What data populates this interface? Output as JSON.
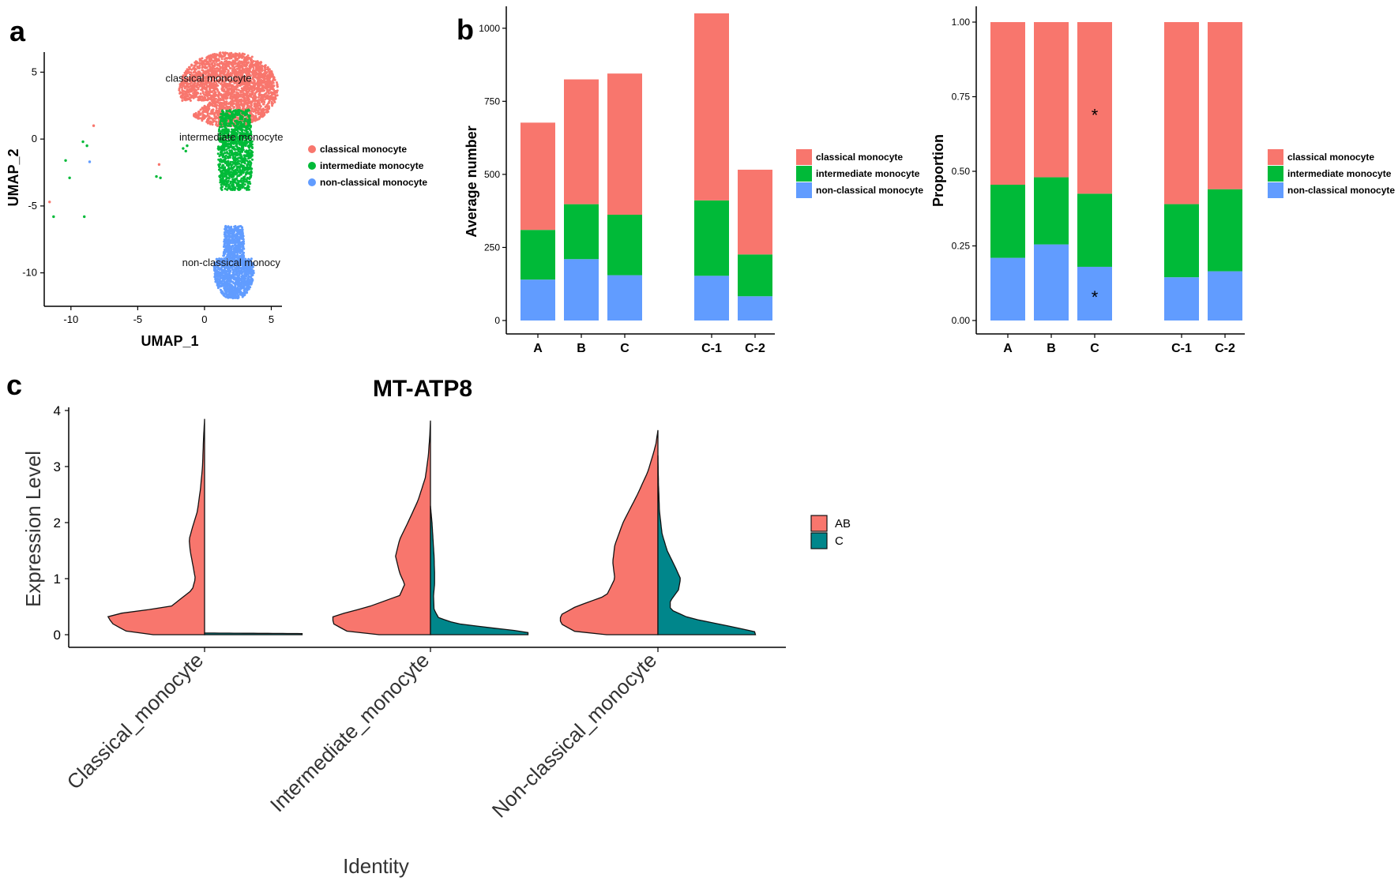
{
  "panel_labels": {
    "a": "a",
    "b": "b",
    "c": "c"
  },
  "colors": {
    "classical": "#F8766D",
    "intermediate": "#00BA38",
    "nonclassical": "#619CFF",
    "AB": "#F8766D",
    "C": "#00868B"
  },
  "chart_data": [
    {
      "id": "umap",
      "type": "scatter",
      "title": "",
      "xlabel": "UMAP_1",
      "ylabel": "UMAP_2",
      "xlim": [
        -12,
        5.8
      ],
      "ylim": [
        -12.5,
        6.5
      ],
      "xticks": [
        -10,
        -5,
        0,
        5
      ],
      "yticks": [
        5,
        0,
        -5,
        -10
      ],
      "cluster_labels": [
        {
          "text": "classical monocyte",
          "x": 0.3,
          "y": 4.3
        },
        {
          "text": "intermediate monocyte",
          "x": 2.0,
          "y": -0.1
        },
        {
          "text": "non-classical monocy",
          "x": 2.0,
          "y": -9.5
        }
      ],
      "clusters": [
        {
          "name": "classical monocyte",
          "color_key": "classical",
          "shape": "upper",
          "cx": 1.8,
          "cy": 3.7,
          "rx": 3.7,
          "ry": 2.8,
          "n": 2600
        },
        {
          "name": "intermediate monocyte",
          "color_key": "intermediate",
          "shape": "middle",
          "cx": 2.3,
          "cy": -0.8,
          "rx": 1.3,
          "ry": 3.0,
          "n": 1100
        },
        {
          "name": "non-classical monocyte",
          "color_key": "nonclassical",
          "shape": "lower",
          "cx": 2.2,
          "cy": -9.2,
          "rx": 1.5,
          "ry": 2.7,
          "n": 1400
        }
      ],
      "outliers": [
        {
          "x": -8.3,
          "y": 1.0,
          "color_key": "classical"
        },
        {
          "x": -9.1,
          "y": -0.2,
          "color_key": "intermediate"
        },
        {
          "x": -8.8,
          "y": -0.5,
          "color_key": "intermediate"
        },
        {
          "x": -8.6,
          "y": -1.7,
          "color_key": "nonclassical"
        },
        {
          "x": -10.4,
          "y": -1.6,
          "color_key": "intermediate"
        },
        {
          "x": -10.1,
          "y": -2.9,
          "color_key": "intermediate"
        },
        {
          "x": -11.6,
          "y": -4.7,
          "color_key": "classical"
        },
        {
          "x": -11.3,
          "y": -5.8,
          "color_key": "intermediate"
        },
        {
          "x": -9.0,
          "y": -5.8,
          "color_key": "intermediate"
        },
        {
          "x": -3.6,
          "y": -2.8,
          "color_key": "intermediate"
        },
        {
          "x": -3.3,
          "y": -2.9,
          "color_key": "intermediate"
        },
        {
          "x": -3.4,
          "y": -1.9,
          "color_key": "classical"
        },
        {
          "x": -1.6,
          "y": -0.7,
          "color_key": "intermediate"
        },
        {
          "x": -1.3,
          "y": -0.5,
          "color_key": "intermediate"
        },
        {
          "x": -1.4,
          "y": -0.9,
          "color_key": "intermediate"
        }
      ],
      "legend": [
        "classical monocyte",
        "intermediate monocyte",
        "non-classical monocyte"
      ],
      "legend_position": "right"
    },
    {
      "id": "counts",
      "type": "bar",
      "stacked": true,
      "title": "",
      "xlabel": "",
      "ylabel": "Average number",
      "categories": [
        "A",
        "B",
        "C",
        "C-1",
        "C-2"
      ],
      "series": [
        {
          "name": "non-classical monocyte",
          "color_key": "nonclassical",
          "values": [
            140,
            210,
            155,
            153,
            83
          ]
        },
        {
          "name": "intermediate monocyte",
          "color_key": "intermediate",
          "values": [
            170,
            188,
            207,
            258,
            143
          ]
        },
        {
          "name": "classical monocyte",
          "color_key": "classical",
          "values": [
            367,
            427,
            483,
            640,
            290
          ]
        }
      ],
      "ylim": [
        0,
        1075
      ],
      "yticks": [
        0,
        250,
        500,
        750,
        1000
      ],
      "legend": [
        "classical monocyte",
        "intermediate monocyte",
        "non-classical monocyte"
      ],
      "legend_position": "right"
    },
    {
      "id": "proportion",
      "type": "bar",
      "stacked": true,
      "title": "",
      "xlabel": "",
      "ylabel": "Proportion",
      "categories": [
        "A",
        "B",
        "C",
        "C-1",
        "C-2"
      ],
      "series": [
        {
          "name": "non-classical monocyte",
          "color_key": "nonclassical",
          "values": [
            0.21,
            0.255,
            0.18,
            0.145,
            0.165
          ]
        },
        {
          "name": "intermediate monocyte",
          "color_key": "intermediate",
          "values": [
            0.245,
            0.225,
            0.245,
            0.245,
            0.275
          ]
        },
        {
          "name": "classical monocyte",
          "color_key": "classical",
          "values": [
            0.545,
            0.52,
            0.575,
            0.61,
            0.56
          ]
        }
      ],
      "ylim": [
        0,
        1.0
      ],
      "yticks": [
        "0.00",
        "0.25",
        "0.50",
        "0.75",
        "1.00"
      ],
      "annotations": [
        {
          "text": "*",
          "category": "C",
          "y": 0.7
        },
        {
          "text": "*",
          "category": "C",
          "y": 0.09
        }
      ],
      "legend": [
        "classical monocyte",
        "intermediate monocyte",
        "non-classical monocyte"
      ],
      "legend_position": "right"
    },
    {
      "id": "violin",
      "type": "violin",
      "split": true,
      "title": "MT-ATP8",
      "xlabel": "Identity",
      "ylabel": "Expression Level",
      "categories": [
        "Classical_monocyte",
        "Intermediate_monocyte",
        "Non-classical_monocyte"
      ],
      "ylim": [
        -0.15,
        4.05
      ],
      "yticks": [
        0,
        1,
        2,
        3,
        4
      ],
      "groups": [
        {
          "name": "AB",
          "color_key": "AB",
          "max": [
            3.85,
            3.82,
            3.65
          ],
          "profiles": [
            [
              [
                0.0,
                0.5
              ],
              [
                0.05,
                0.75
              ],
              [
                0.2,
                0.9
              ],
              [
                0.35,
                0.95
              ],
              [
                0.5,
                0.33
              ],
              [
                0.8,
                0.12
              ],
              [
                1.0,
                0.09
              ],
              [
                1.2,
                0.11
              ],
              [
                1.5,
                0.14
              ],
              [
                1.7,
                0.15
              ],
              [
                1.9,
                0.12
              ],
              [
                2.2,
                0.07
              ],
              [
                2.6,
                0.04
              ],
              [
                3.0,
                0.02
              ],
              [
                3.5,
                0.01
              ],
              [
                3.85,
                0.0
              ]
            ],
            [
              [
                0.0,
                0.5
              ],
              [
                0.05,
                0.8
              ],
              [
                0.2,
                0.95
              ],
              [
                0.33,
                0.95
              ],
              [
                0.5,
                0.6
              ],
              [
                0.7,
                0.3
              ],
              [
                0.9,
                0.25
              ],
              [
                1.1,
                0.3
              ],
              [
                1.4,
                0.34
              ],
              [
                1.7,
                0.3
              ],
              [
                2.0,
                0.22
              ],
              [
                2.4,
                0.12
              ],
              [
                2.8,
                0.05
              ],
              [
                3.2,
                0.02
              ],
              [
                3.6,
                0.005
              ],
              [
                3.82,
                0.0
              ]
            ],
            [
              [
                0.0,
                0.5
              ],
              [
                0.05,
                0.8
              ],
              [
                0.2,
                0.95
              ],
              [
                0.35,
                0.95
              ],
              [
                0.5,
                0.8
              ],
              [
                0.7,
                0.5
              ],
              [
                1.0,
                0.42
              ],
              [
                1.3,
                0.44
              ],
              [
                1.6,
                0.42
              ],
              [
                2.0,
                0.34
              ],
              [
                2.5,
                0.2
              ],
              [
                2.9,
                0.1
              ],
              [
                3.2,
                0.05
              ],
              [
                3.4,
                0.02
              ],
              [
                3.65,
                0.0
              ]
            ]
          ]
        },
        {
          "name": "C",
          "color_key": "C",
          "max": [
            0.03,
            2.3,
            3.2
          ],
          "profiles": [
            [
              [
                0.0,
                0.95
              ],
              [
                0.02,
                0.95
              ],
              [
                0.03,
                0.0
              ]
            ],
            [
              [
                0.0,
                0.95
              ],
              [
                0.05,
                0.95
              ],
              [
                0.12,
                0.6
              ],
              [
                0.2,
                0.25
              ],
              [
                0.3,
                0.08
              ],
              [
                0.45,
                0.035
              ],
              [
                0.7,
                0.03
              ],
              [
                0.9,
                0.04
              ],
              [
                1.1,
                0.04
              ],
              [
                1.4,
                0.035
              ],
              [
                1.7,
                0.025
              ],
              [
                2.0,
                0.015
              ],
              [
                2.3,
                0.0
              ]
            ],
            [
              [
                0.0,
                0.95
              ],
              [
                0.05,
                0.95
              ],
              [
                0.15,
                0.7
              ],
              [
                0.3,
                0.3
              ],
              [
                0.45,
                0.12
              ],
              [
                0.6,
                0.12
              ],
              [
                0.8,
                0.2
              ],
              [
                1.0,
                0.22
              ],
              [
                1.2,
                0.17
              ],
              [
                1.5,
                0.09
              ],
              [
                1.8,
                0.04
              ],
              [
                2.2,
                0.015
              ],
              [
                2.7,
                0.005
              ],
              [
                3.2,
                0.0
              ]
            ]
          ]
        }
      ],
      "legend": [
        "AB",
        "C"
      ],
      "legend_position": "right"
    }
  ]
}
